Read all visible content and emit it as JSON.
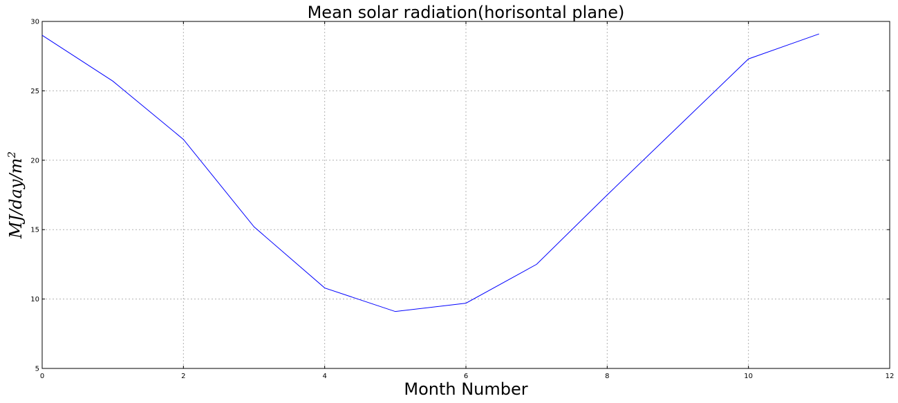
{
  "chart_data": {
    "type": "line",
    "title": "Mean solar radiation(horisontal plane)",
    "xlabel": "Month Number",
    "ylabel": "MJ/day/m²",
    "ylabel_parts": {
      "base": "MJ/day/m",
      "superscript": "2"
    },
    "xlim": [
      0,
      12
    ],
    "ylim": [
      5,
      30
    ],
    "xticks": [
      0,
      2,
      4,
      6,
      8,
      10,
      12
    ],
    "yticks": [
      5,
      10,
      15,
      20,
      25,
      30
    ],
    "xtick_labels": [
      "0",
      "2",
      "4",
      "6",
      "8",
      "10",
      "12"
    ],
    "ytick_labels": [
      "5",
      "10",
      "15",
      "20",
      "25",
      "30"
    ],
    "grid": true,
    "series": [
      {
        "color": "#0000ff",
        "x": [
          0,
          1,
          2,
          3,
          4,
          5,
          6,
          7,
          8,
          9,
          10,
          11
        ],
        "values": [
          29.0,
          25.7,
          21.5,
          15.2,
          10.8,
          9.1,
          9.7,
          12.5,
          17.5,
          22.4,
          27.3,
          29.1
        ]
      }
    ]
  }
}
